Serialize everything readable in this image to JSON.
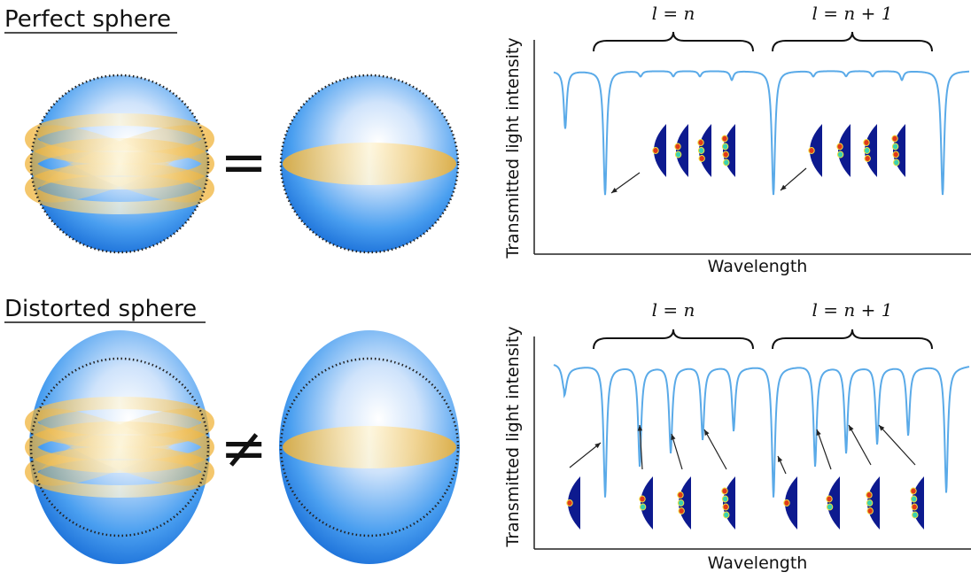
{
  "panels": [
    {
      "title": "Perfect sphere",
      "relation": "=",
      "spectrum": {
        "y_label": "Transmitted light intensity",
        "x_label": "Wavelength",
        "groups": [
          "l = n",
          "l = n + 1"
        ]
      }
    },
    {
      "title": "Distorted sphere",
      "relation": "≠",
      "spectrum": {
        "y_label": "Transmitted light intensity",
        "x_label": "Wavelength",
        "groups": [
          "l = n",
          "l = n + 1"
        ]
      }
    }
  ]
}
